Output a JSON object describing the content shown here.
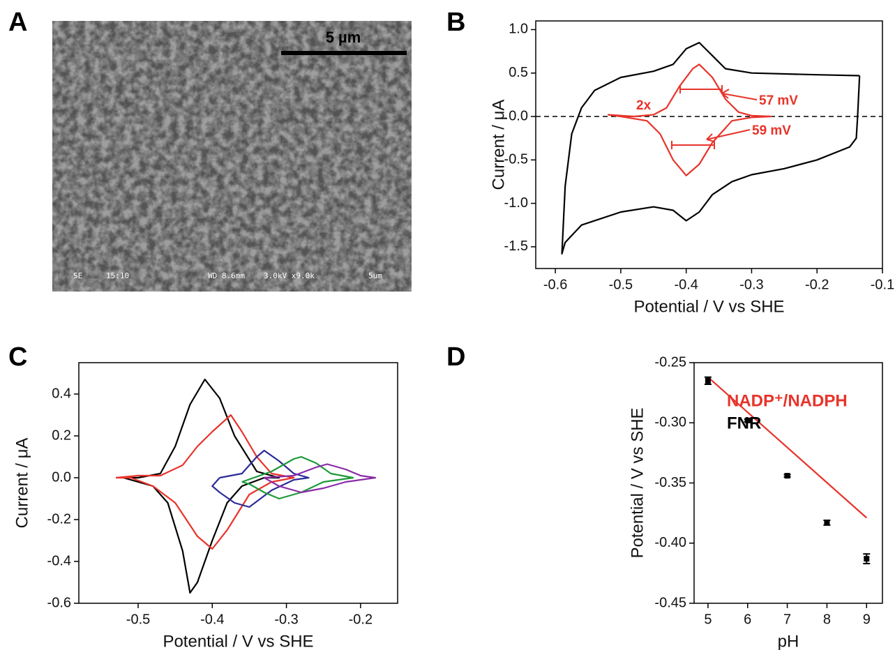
{
  "image": {
    "label": "A",
    "scale_bar": "5 µm",
    "info": [
      "SE",
      "15:10",
      "WD 8.6mm",
      "3.0kV x9.0k",
      "5um"
    ]
  },
  "chart_data": [
    {
      "type": "line",
      "label": "B",
      "xlabel": "Potential / V vs SHE",
      "ylabel": "Current / μA",
      "xlim": [
        -0.63,
        -0.1
      ],
      "ylim": [
        -1.75,
        1.1
      ],
      "xticks": [
        -0.6,
        -0.5,
        -0.4,
        -0.3,
        -0.2,
        -0.1
      ],
      "yticks": [
        {
          "value": 1.0,
          "label": "1.0"
        },
        0.5,
        {
          "value": 0.0,
          "label": "0.0"
        },
        -0.5,
        {
          "value": -1.0,
          "label": "-1.0"
        },
        -1.5
      ],
      "annotations": [
        "2x",
        "57 mV",
        "59 mV"
      ],
      "series": [
        {
          "color": "#000000",
          "x": [
            -0.135,
            -0.2,
            -0.3,
            -0.34,
            -0.36,
            -0.38,
            -0.4,
            -0.42,
            -0.45,
            -0.5,
            -0.54,
            -0.56,
            -0.575,
            -0.585,
            -0.59,
            -0.585,
            -0.56,
            -0.5,
            -0.45,
            -0.42,
            -0.4,
            -0.38,
            -0.36,
            -0.33,
            -0.3,
            -0.25,
            -0.2,
            -0.15,
            -0.14,
            -0.138,
            -0.135
          ],
          "values": [
            0.47,
            0.48,
            0.5,
            0.55,
            0.7,
            0.85,
            0.78,
            0.6,
            0.52,
            0.45,
            0.3,
            0.1,
            -0.2,
            -0.8,
            -1.58,
            -1.45,
            -1.25,
            -1.1,
            -1.04,
            -1.08,
            -1.2,
            -1.1,
            -0.9,
            -0.75,
            -0.67,
            -0.6,
            -0.5,
            -0.35,
            -0.25,
            0.0,
            0.47
          ]
        },
        {
          "color": "#e8332a",
          "x": [
            -0.52,
            -0.48,
            -0.45,
            -0.43,
            -0.41,
            -0.39,
            -0.38,
            -0.36,
            -0.34,
            -0.32,
            -0.3,
            -0.27,
            -0.3,
            -0.33,
            -0.36,
            -0.38,
            -0.4,
            -0.42,
            -0.44,
            -0.46,
            -0.5,
            -0.52
          ],
          "values": [
            0.02,
            0.0,
            0.02,
            0.1,
            0.35,
            0.55,
            0.6,
            0.45,
            0.2,
            0.05,
            0.01,
            0.0,
            -0.01,
            -0.05,
            -0.3,
            -0.55,
            -0.68,
            -0.5,
            -0.2,
            -0.05,
            0.0,
            0.02
          ]
        }
      ]
    },
    {
      "type": "line",
      "label": "C",
      "xlabel": "Potential / V vs SHE",
      "ylabel": "Current / μA",
      "xlim": [
        -0.58,
        -0.15
      ],
      "ylim": [
        -0.6,
        0.55
      ],
      "xticks": [
        -0.5,
        -0.4,
        -0.3,
        -0.2
      ],
      "yticks": [
        0.4,
        0.2,
        {
          "value": 0.0,
          "label": "0.0"
        },
        -0.2,
        -0.4,
        -0.6
      ],
      "series": [
        {
          "color": "#000000",
          "x": [
            -0.52,
            -0.48,
            -0.46,
            -0.44,
            -0.43,
            -0.42,
            -0.4,
            -0.38,
            -0.36,
            -0.33,
            -0.31,
            -0.34,
            -0.37,
            -0.39,
            -0.41,
            -0.43,
            -0.45,
            -0.47,
            -0.5,
            -0.52
          ],
          "values": [
            0,
            -0.04,
            -0.12,
            -0.35,
            -0.55,
            -0.5,
            -0.3,
            -0.12,
            -0.04,
            0,
            0,
            0.03,
            0.2,
            0.38,
            0.47,
            0.35,
            0.15,
            0.02,
            0,
            0
          ]
        },
        {
          "color": "#e8332a",
          "x": [
            -0.53,
            -0.5,
            -0.47,
            -0.44,
            -0.42,
            -0.4,
            -0.375,
            -0.36,
            -0.34,
            -0.32,
            -0.29,
            -0.32,
            -0.35,
            -0.38,
            -0.4,
            -0.42,
            -0.45,
            -0.48,
            -0.51,
            -0.53
          ],
          "values": [
            0,
            0.01,
            0.01,
            0.06,
            0.15,
            0.22,
            0.3,
            0.22,
            0.1,
            0.02,
            0,
            -0.02,
            -0.08,
            -0.25,
            -0.34,
            -0.28,
            -0.12,
            -0.04,
            0,
            0
          ]
        },
        {
          "color": "#2b2b9a",
          "x": [
            -0.39,
            -0.36,
            -0.34,
            -0.33,
            -0.31,
            -0.29,
            -0.27,
            -0.29,
            -0.32,
            -0.35,
            -0.37,
            -0.39,
            -0.4,
            -0.39
          ],
          "values": [
            0,
            0.02,
            0.1,
            0.13,
            0.08,
            0.02,
            0,
            -0.01,
            -0.06,
            -0.14,
            -0.12,
            -0.07,
            -0.04,
            0
          ]
        },
        {
          "color": "#1e9a3a",
          "x": [
            -0.36,
            -0.32,
            -0.29,
            -0.28,
            -0.26,
            -0.24,
            -0.21,
            -0.25,
            -0.28,
            -0.31,
            -0.33,
            -0.35,
            -0.36
          ],
          "values": [
            -0.02,
            0.03,
            0.09,
            0.1,
            0.07,
            0.02,
            0,
            -0.02,
            -0.07,
            -0.1,
            -0.07,
            -0.03,
            -0.02
          ]
        },
        {
          "color": "#8a2aa8",
          "x": [
            -0.33,
            -0.29,
            -0.26,
            -0.245,
            -0.22,
            -0.2,
            -0.18,
            -0.22,
            -0.25,
            -0.28,
            -0.31,
            -0.33
          ],
          "values": [
            0,
            0.01,
            0.05,
            0.065,
            0.04,
            0.01,
            0,
            -0.02,
            -0.05,
            -0.07,
            -0.04,
            0
          ]
        }
      ]
    },
    {
      "type": "scatter",
      "label": "D",
      "xlabel": "pH",
      "ylabel": "Potential / V vs SHE",
      "xlim": [
        4.65,
        9.4
      ],
      "ylim": [
        -0.45,
        -0.25
      ],
      "xticks": [
        5,
        6,
        7,
        8,
        9
      ],
      "yticks": [
        -0.25,
        {
          "value": -0.3,
          "label": "-0.30"
        },
        -0.35,
        {
          "value": -0.4,
          "label": "-0.40"
        },
        -0.45
      ],
      "series": [
        {
          "name": "FNR",
          "color": "#000000",
          "x": [
            5,
            6,
            7,
            8,
            9
          ],
          "values": [
            -0.265,
            -0.298,
            -0.344,
            -0.383,
            -0.413
          ],
          "errors": [
            0.003,
            0.001,
            0.001,
            0.002,
            0.004
          ]
        }
      ],
      "fit": {
        "name": "NADP⁺/NADPH",
        "color": "#e8332a",
        "x": [
          5,
          9
        ],
        "values": [
          -0.262,
          -0.379
        ]
      }
    }
  ]
}
